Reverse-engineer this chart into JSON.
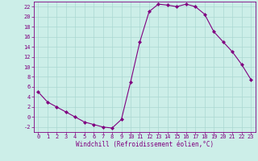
{
  "x": [
    0,
    1,
    2,
    3,
    4,
    5,
    6,
    7,
    8,
    9,
    10,
    11,
    12,
    13,
    14,
    15,
    16,
    17,
    18,
    19,
    20,
    21,
    22,
    23
  ],
  "y": [
    5,
    3,
    2,
    1,
    0,
    -1,
    -1.5,
    -2,
    -2.2,
    -0.5,
    7,
    15,
    21,
    22.5,
    22.3,
    22,
    22.5,
    22,
    20.5,
    17,
    15,
    13,
    10.5,
    7.5
  ],
  "xlabel": "Windchill (Refroidissement éolien,°C)",
  "xlim": [
    -0.5,
    23.5
  ],
  "ylim": [
    -3,
    23
  ],
  "yticks": [
    -2,
    0,
    2,
    4,
    6,
    8,
    10,
    12,
    14,
    16,
    18,
    20,
    22
  ],
  "xticks": [
    0,
    1,
    2,
    3,
    4,
    5,
    6,
    7,
    8,
    9,
    10,
    11,
    12,
    13,
    14,
    15,
    16,
    17,
    18,
    19,
    20,
    21,
    22,
    23
  ],
  "line_color": "#800080",
  "marker": "D",
  "marker_size": 2.0,
  "bg_color": "#cceee8",
  "grid_color": "#aad8d2",
  "tick_color": "#800080",
  "label_color": "#800080",
  "font": "monospace",
  "tick_fontsize": 5.0,
  "xlabel_fontsize": 5.5
}
